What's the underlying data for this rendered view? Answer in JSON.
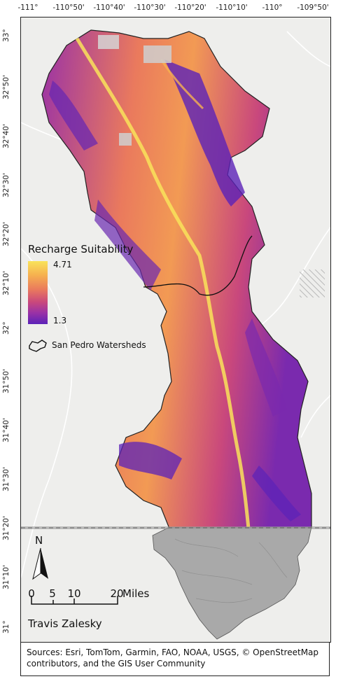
{
  "longitude_ticks": [
    "-111°",
    "-110°50'",
    "-110°40'",
    "-110°30'",
    "-110°20'",
    "-110°10'",
    "-110°",
    "-109°50'"
  ],
  "latitude_ticks": [
    "33°",
    "32°50'",
    "32°40'",
    "32°30'",
    "32°20'",
    "32°10'",
    "32°",
    "31°50'",
    "31°40'",
    "31°30'",
    "31°20'",
    "31°10'",
    "31°"
  ],
  "legend": {
    "title": "Recharge Suitability",
    "max_value": "4.71",
    "min_value": "1.3",
    "watershed_label": "San Pedro Watersheds",
    "ramp_colors": [
      "#f9e35a",
      "#f6b14f",
      "#ea7a5d",
      "#c9487c",
      "#9a32a6",
      "#5b22b8"
    ]
  },
  "north_arrow": {
    "letter": "N"
  },
  "scale_bar": {
    "labels": [
      "0",
      "5",
      "10",
      "20"
    ],
    "values_miles": [
      0,
      5,
      10,
      20
    ],
    "unit": "Miles"
  },
  "author": "Travis Zalesky",
  "sources": "Sources: Esri, TomTom, Garmin, FAO, NOAA, USGS, © OpenStreetMap contributors, and the GIS User Community",
  "colors": {
    "basemap": "#eeeeec",
    "high_suitability": "#f9e35a",
    "mid_suitability": "#ea7a5d",
    "low_suitability": "#5b22b8",
    "mexico_hillshade": "#a9a9a9",
    "border_line": "#9a9a9a"
  }
}
